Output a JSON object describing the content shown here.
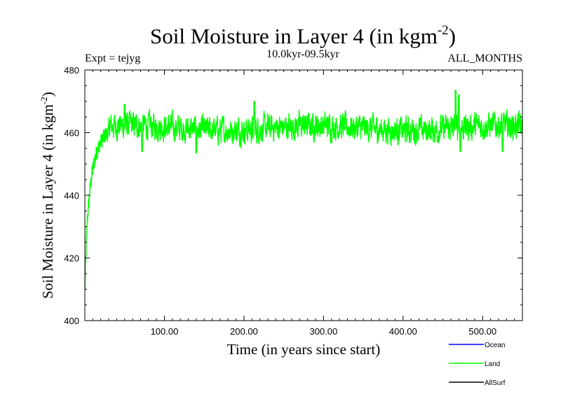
{
  "chart_data": {
    "type": "line",
    "title": "Soil Moisture in Layer 4 (in kgm",
    "title_superscript": "-2",
    "title_close": ")",
    "left_header": "Expt = tejyg",
    "center_header": "10.0kyr-09.5kyr",
    "right_header": "ALL_MONTHS",
    "xlabel": "Time (in years since start)",
    "ylabel": "Soil Moisture in Layer 4 (in kgm",
    "ylabel_superscript": "-2",
    "ylabel_close": ")",
    "xlim": [
      0,
      550
    ],
    "ylim": [
      400,
      480
    ],
    "x_ticks": [
      100,
      200,
      300,
      400,
      500
    ],
    "x_tick_labels": [
      "100.00",
      "200.00",
      "300.00",
      "400.00",
      "500.00"
    ],
    "y_ticks": [
      400,
      420,
      440,
      460,
      480
    ],
    "y_tick_labels": [
      "400",
      "420",
      "440",
      "460",
      "480"
    ],
    "series": [
      {
        "name": "Land",
        "color": "#00ff00",
        "spinup": [
          [
            0,
            409
          ],
          [
            1,
            418
          ],
          [
            2,
            426
          ],
          [
            3,
            432
          ],
          [
            5,
            438
          ],
          [
            7,
            443
          ],
          [
            9,
            447
          ],
          [
            12,
            451
          ],
          [
            15,
            454
          ],
          [
            20,
            457
          ],
          [
            25,
            459
          ],
          [
            30,
            460
          ]
        ],
        "equilibrium_mean": 461.5,
        "variability": 3.2,
        "notable_peaks": [
          [
            50,
            469
          ],
          [
            213,
            470
          ],
          [
            466,
            473.5
          ],
          [
            470,
            472
          ]
        ],
        "notable_dips": [
          [
            72,
            454
          ],
          [
            140,
            453.5
          ],
          [
            472,
            454
          ],
          [
            525,
            454
          ]
        ]
      },
      {
        "name": "Ocean",
        "color": "#0000ff",
        "values": []
      },
      {
        "name": "AllSurf",
        "color": "#000000",
        "values": []
      }
    ],
    "legend": [
      {
        "name": "Ocean",
        "color": "#0000ff"
      },
      {
        "name": "Land",
        "color": "#00ff00"
      },
      {
        "name": "AllSurf",
        "color": "#000000"
      }
    ]
  }
}
